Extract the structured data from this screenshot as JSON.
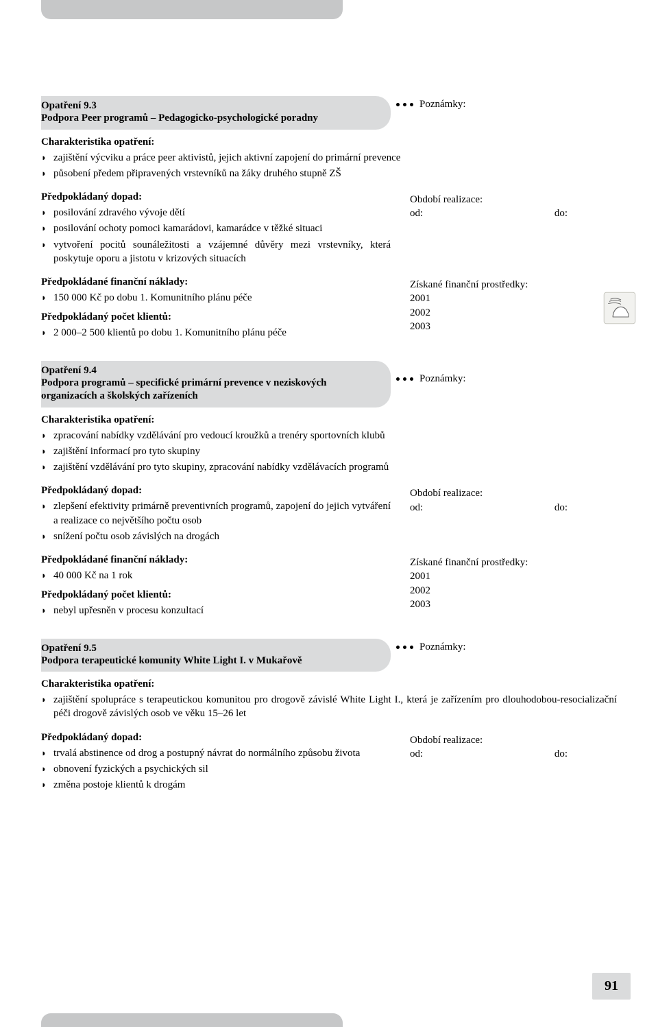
{
  "colors": {
    "pill_bg": "#dadbdc",
    "tab_bg": "#c6c7c8",
    "text": "#000000",
    "page_bg": "#ffffff"
  },
  "labels": {
    "notes": "Poznámky:",
    "char_heading": "Charakteristika opatření:",
    "impact_heading": "Předpokládaný dopad:",
    "costs_heading": "Předpokládané finanční náklady:",
    "clients_heading": "Předpokládaný počet klientů:",
    "period_heading": "Období realizace:",
    "od": "od:",
    "do": "do:",
    "funds_heading": "Získané finanční prostředky:",
    "y2001": "2001",
    "y2002": "2002",
    "y2003": "2003"
  },
  "page_number": "91",
  "measures": [
    {
      "num": "Opatření 9.3",
      "title": "Podpora Peer programů – Pedagogicko-psychologické poradny",
      "char": [
        "zajištění výcviku a práce peer aktivistů, jejich aktivní zapojení do primární prevence",
        "působení předem připravených vrstevníků na žáky druhého stupně ZŠ"
      ],
      "impact": [
        "posilování zdravého vývoje dětí",
        "posilování ochoty pomoci kamarádovi, kamarádce v těžké situaci",
        "vytvoření pocitů sounáležitosti a vzájemné důvěry mezi vrstevníky, která poskytuje oporu a jistotu v krizových situacích"
      ],
      "costs": [
        "150 000 Kč po dobu 1. Komunitního plánu péče"
      ],
      "clients": [
        "2 000–2 500 klientů po dobu 1. Komunitního plánu péče"
      ],
      "show_funds": true,
      "show_icon": true
    },
    {
      "num": "Opatření 9.4",
      "title": "Podpora programů – specifické primární prevence v neziskových organizacích a školských zařízeních",
      "char": [
        "zpracování nabídky vzdělávání pro vedoucí kroužků a trenéry sportovních klubů",
        "zajištění informací pro tyto skupiny",
        "zajištění vzdělávání pro tyto skupiny, zpracování nabídky vzdělávacích programů"
      ],
      "impact": [
        "zlepšení efektivity primárně preventivních programů, zapojení do jejich vytváření a realizace co největšího počtu osob",
        "snížení počtu osob závislých na drogách"
      ],
      "costs": [
        "40 000 Kč na 1 rok"
      ],
      "clients": [
        "nebyl upřesněn v procesu konzultací"
      ],
      "show_funds": true,
      "show_icon": false
    },
    {
      "num": "Opatření 9.5",
      "title": "Podpora terapeutické komunity White Light I. v Mukařově",
      "char": [
        "zajištění spolupráce s terapeutickou komunitou pro drogově závislé White Light I., která je zařízením pro dlouhodobou-resocializační péči drogově závislých osob ve věku 15–26 let"
      ],
      "impact": [
        "trvalá abstinence od drog a postupný návrat do normálního způsobu života",
        "obnovení fyzických a psychických sil",
        "změna postoje klientů k drogám"
      ],
      "costs": null,
      "clients": null,
      "show_funds": false,
      "show_icon": false
    }
  ]
}
